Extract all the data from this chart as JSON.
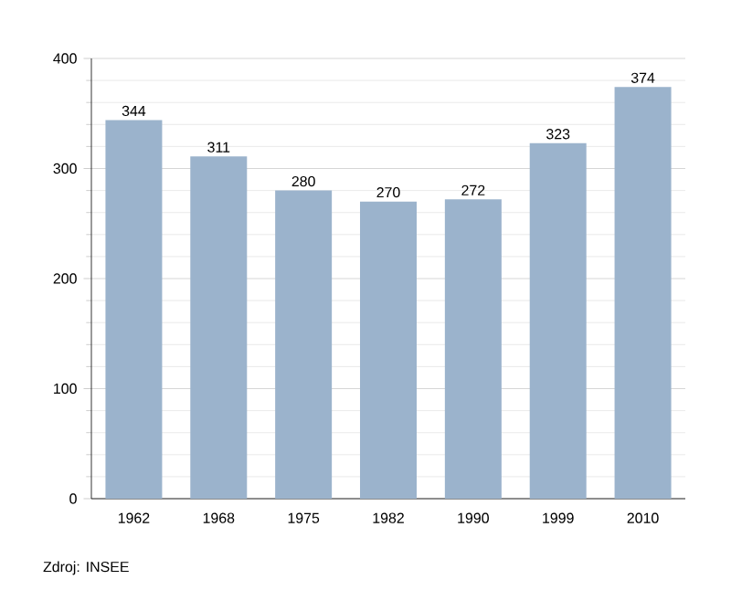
{
  "chart_data": {
    "type": "bar",
    "categories": [
      "1962",
      "1968",
      "1975",
      "1982",
      "1990",
      "1999",
      "2010"
    ],
    "values": [
      344,
      311,
      280,
      270,
      272,
      323,
      374
    ],
    "color": "#9bb3cc",
    "ylim": [
      0,
      400
    ],
    "yticks": [
      0,
      100,
      200,
      300,
      400
    ],
    "grid": "y",
    "data_labels": true,
    "annotations": [
      "Zdroj: INSEE"
    ]
  }
}
